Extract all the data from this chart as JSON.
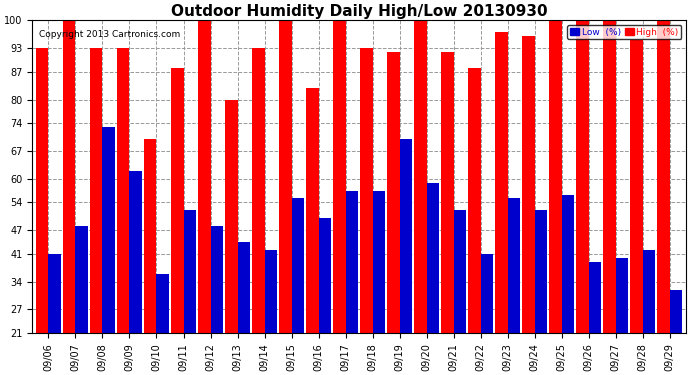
{
  "title": "Outdoor Humidity Daily High/Low 20130930",
  "copyright": "Copyright 2013 Cartronics.com",
  "dates": [
    "09/06",
    "09/07",
    "09/08",
    "09/09",
    "09/10",
    "09/11",
    "09/12",
    "09/13",
    "09/14",
    "09/15",
    "09/16",
    "09/17",
    "09/18",
    "09/19",
    "09/20",
    "09/21",
    "09/22",
    "09/23",
    "09/24",
    "09/25",
    "09/26",
    "09/27",
    "09/28",
    "09/29"
  ],
  "high": [
    93,
    100,
    93,
    93,
    70,
    88,
    100,
    80,
    93,
    100,
    83,
    100,
    93,
    92,
    100,
    92,
    88,
    97,
    96,
    100,
    100,
    100,
    95,
    100
  ],
  "low": [
    41,
    48,
    73,
    62,
    36,
    52,
    48,
    44,
    42,
    55,
    50,
    57,
    57,
    70,
    59,
    52,
    41,
    55,
    52,
    56,
    39,
    40,
    42,
    32
  ],
  "ylim_min": 21,
  "ylim_max": 100,
  "yticks": [
    21,
    27,
    34,
    41,
    47,
    54,
    60,
    67,
    74,
    80,
    87,
    93,
    100
  ],
  "bar_width": 0.46,
  "high_color": "#ff0000",
  "low_color": "#0000cc",
  "bg_color": "#ffffff",
  "grid_color": "#999999",
  "title_fontsize": 11,
  "tick_fontsize": 7,
  "legend_low_label": "Low  (%)",
  "legend_high_label": "High  (%)"
}
